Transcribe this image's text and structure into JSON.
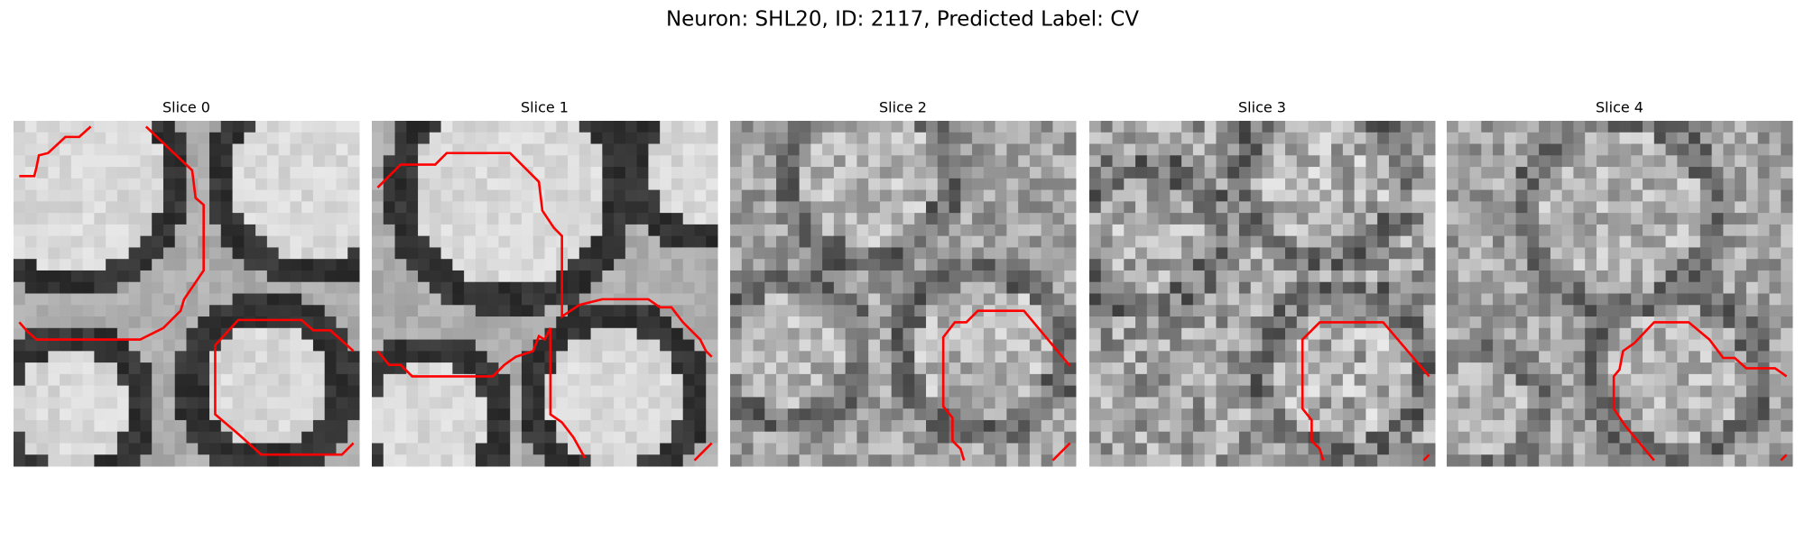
{
  "title": "Neuron: SHL20, ID: 2117, Predicted Label: CV",
  "panels": [
    {
      "title": "Slice 0"
    },
    {
      "title": "Slice 1"
    },
    {
      "title": "Slice 2"
    },
    {
      "title": "Slice 3"
    },
    {
      "title": "Slice 4"
    }
  ]
}
